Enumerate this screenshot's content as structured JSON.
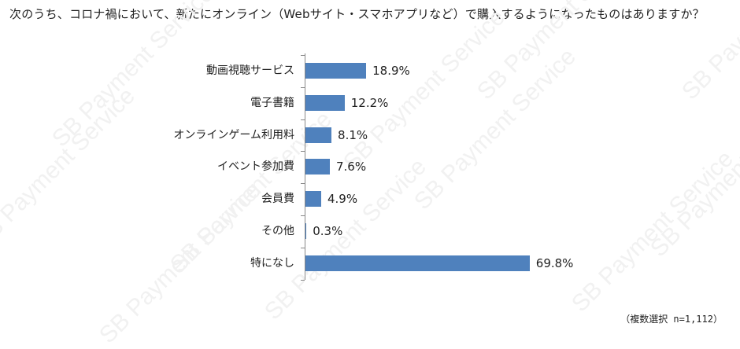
{
  "title": "次のうち、コロナ禍において、新たにオンライン（Webサイト・スマホアプリなど）で購入するようになったものはありますか？",
  "watermark": "SB Payment Service",
  "note": "（複数選択 n=1,112）",
  "colors": {
    "bar": "#4f81bd",
    "axis": "#888888",
    "watermark": "#f1f1f1"
  },
  "chart_data": {
    "type": "bar",
    "orientation": "horizontal",
    "title": "次のうち、コロナ禍において、新たにオンライン（Webサイト・スマホアプリなど）で購入するようになったものはありますか？",
    "categories": [
      "動画視聴サービス",
      "電子書籍",
      "オンラインゲーム利用料",
      "イベント参加費",
      "会員費",
      "その他",
      "特になし"
    ],
    "values": [
      18.9,
      12.2,
      8.1,
      7.6,
      4.9,
      0.3,
      69.8
    ],
    "value_labels": [
      "18.9%",
      "12.2%",
      "8.1%",
      "7.6%",
      "4.9%",
      "0.3%",
      "69.8%"
    ],
    "unit": "%",
    "xlabel": "",
    "ylabel": "",
    "xlim": [
      0,
      100
    ],
    "grid": false,
    "legend": null,
    "annotation": "（複数選択 n=1,112）"
  }
}
